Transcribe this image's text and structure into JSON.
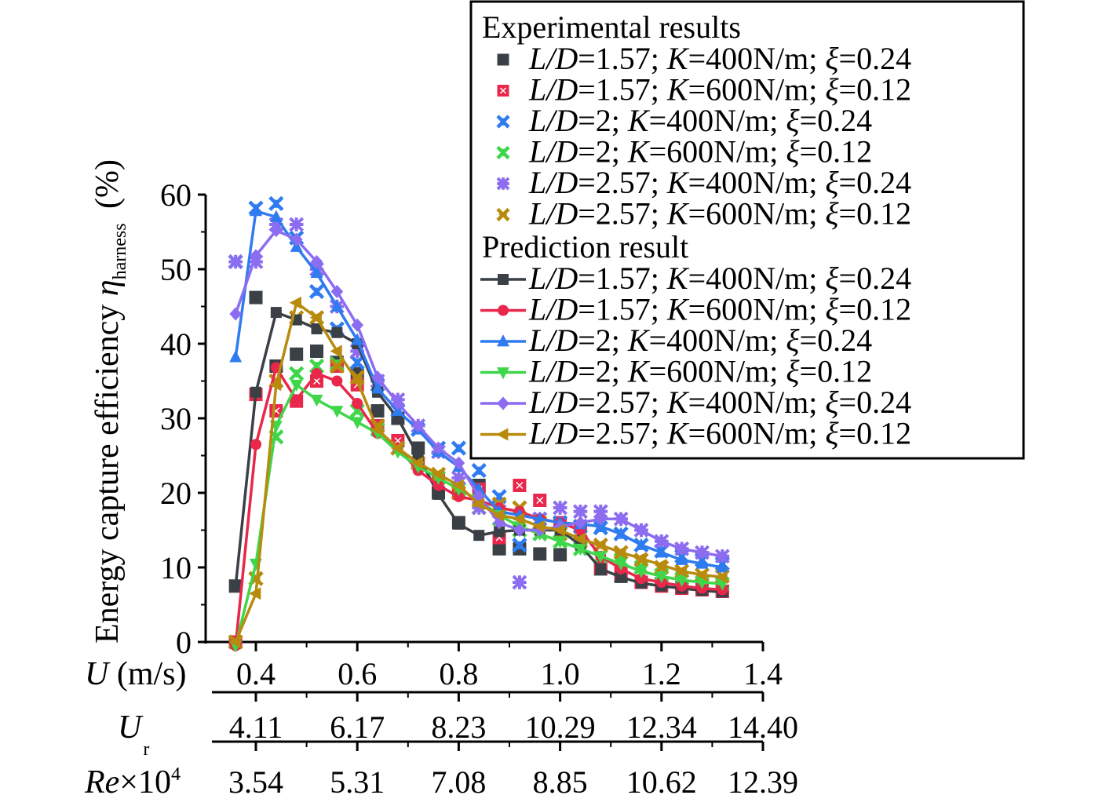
{
  "chart_data": {
    "type": "line",
    "title": "",
    "ylabel": "Energy capture efficiency η_harness (%)",
    "ylabel_parts": {
      "main": "Energy capture efficiency ",
      "symbol": "η",
      "subscript": "harness",
      "unit": " (%)"
    },
    "ylim": [
      0,
      60
    ],
    "yticks": [
      "0",
      "10",
      "20",
      "30",
      "40",
      "50",
      "60"
    ],
    "ytick_values": [
      0,
      10,
      20,
      30,
      40,
      50,
      60
    ],
    "xlim": [
      0.34,
      1.4
    ],
    "x_axes": [
      {
        "label_italic": "U",
        "label_rest": " (m/s)",
        "ticks": [
          "0.4",
          "0.6",
          "0.8",
          "1.0",
          "1.2",
          "1.4"
        ]
      },
      {
        "label_italic": "U",
        "label_sub": "r",
        "ticks": [
          "4.11",
          "6.17",
          "8.23",
          "10.29",
          "12.34",
          "14.40"
        ]
      },
      {
        "label_italic": "Re",
        "label_rest": "×10",
        "label_sup": "4",
        "ticks": [
          "3.54",
          "5.31",
          "7.08",
          "8.85",
          "10.62",
          "12.39"
        ]
      }
    ],
    "xtick_values": [
      0.4,
      0.6,
      0.8,
      1.0,
      1.2,
      1.4
    ],
    "x": [
      0.36,
      0.4,
      0.44,
      0.48,
      0.52,
      0.56,
      0.6,
      0.64,
      0.68,
      0.72,
      0.76,
      0.8,
      0.84,
      0.88,
      0.92,
      0.96,
      1.0,
      1.04,
      1.08,
      1.12,
      1.16,
      1.2,
      1.24,
      1.28,
      1.32
    ],
    "legend": {
      "placement": "top-right",
      "experimental_heading": "Experimental results",
      "prediction_heading": "Prediction result"
    },
    "experimental_series": [
      {
        "name": "L/D=1.57; K=400N/m; ξ=0.24",
        "ld": "1.57",
        "k": "400N/m",
        "xi": "0.24",
        "color": "#3a4046",
        "marker": "square",
        "values": [
          7.5,
          46.2,
          37.0,
          38.6,
          39.0,
          37.5,
          36.0,
          31.0,
          30.0,
          26.0,
          20.0,
          16.0,
          21.0,
          12.5,
          12.5,
          11.8,
          11.7,
          13.5,
          9.8,
          8.8,
          8.0,
          7.8,
          7.3,
          7.0,
          6.8
        ]
      },
      {
        "name": "L/D=1.57; K=600N/m; ξ=0.12",
        "ld": "1.57",
        "k": "600N/m",
        "xi": "0.12",
        "color": "#e8274a",
        "marker": "square-x",
        "values": [
          0.0,
          33.2,
          31.0,
          32.3,
          35.0,
          37.0,
          34.5,
          29.0,
          27.0,
          24.0,
          22.0,
          20.0,
          20.5,
          14.0,
          21.0,
          19.0,
          16.0,
          15.5,
          10.0,
          9.2,
          8.0,
          7.5,
          7.2,
          7.0,
          6.8
        ]
      },
      {
        "name": "L/D=2; K=400N/m; ξ=0.24",
        "ld": "2",
        "k": "400N/m",
        "xi": "0.24",
        "color": "#2f7bf0",
        "marker": "x-tri",
        "values": [
          51.0,
          58.2,
          58.8,
          54.2,
          47.0,
          42.0,
          37.5,
          34.5,
          31.0,
          28.5,
          26.0,
          26.0,
          23.0,
          19.5,
          13.0,
          16.5,
          16.0,
          15.5,
          15.3,
          14.5,
          13.0,
          12.2,
          11.5,
          11.0,
          10.5
        ]
      },
      {
        "name": "L/D=2; K=600N/m; ξ=0.12",
        "ld": "2",
        "k": "600N/m",
        "xi": "0.12",
        "color": "#3fd64a",
        "marker": "x-tri-down",
        "values": [
          0.0,
          8.5,
          27.5,
          36.0,
          37.0,
          37.3,
          31.0,
          28.5,
          26.0,
          24.0,
          22.0,
          20.5,
          18.0,
          16.5,
          15.0,
          14.5,
          13.5,
          12.5,
          11.5,
          11.0,
          10.0,
          9.0,
          8.5,
          8.0,
          7.8
        ]
      },
      {
        "name": "L/D=2.57; K=400N/m; ξ=0.24",
        "ld": "2.57",
        "k": "400N/m",
        "xi": "0.24",
        "color": "#8c6cf0",
        "marker": "asterisk",
        "values": [
          51.0,
          51.0,
          56.0,
          56.0,
          50.0,
          45.0,
          39.0,
          35.0,
          32.5,
          29.0,
          25.5,
          22.0,
          18.0,
          17.5,
          8.0,
          16.5,
          18.0,
          17.5,
          17.5,
          16.5,
          15.0,
          13.5,
          12.5,
          12.0,
          11.5
        ]
      },
      {
        "name": "L/D=2.57; K=600N/m; ξ=0.12",
        "ld": "2.57",
        "k": "600N/m",
        "xi": "0.12",
        "color": "#b88b0e",
        "marker": "x-left",
        "values": [
          0.0,
          8.5,
          35.0,
          43.5,
          43.5,
          37.0,
          35.5,
          29.0,
          26.0,
          24.0,
          22.5,
          20.0,
          19.0,
          18.5,
          18.0,
          16.0,
          14.5,
          13.5,
          13.0,
          12.0,
          11.0,
          10.0,
          9.5,
          9.0,
          8.8
        ]
      }
    ],
    "prediction_series": [
      {
        "name": "L/D=1.57; K=400N/m; ξ=0.24",
        "ld": "1.57",
        "k": "400N/m",
        "xi": "0.24",
        "color": "#3a4046",
        "marker": "square",
        "values": [
          7.5,
          33.5,
          44.2,
          43.2,
          42.0,
          41.5,
          40.0,
          33.5,
          30.0,
          25.0,
          19.8,
          15.8,
          14.3,
          14.8,
          15.0,
          15.0,
          15.0,
          13.0,
          9.8,
          8.7,
          7.9,
          7.5,
          7.2,
          6.9,
          6.7
        ]
      },
      {
        "name": "L/D=1.57; K=600N/m; ξ=0.12",
        "ld": "1.57",
        "k": "600N/m",
        "xi": "0.12",
        "color": "#e8274a",
        "marker": "circle",
        "values": [
          -0.5,
          26.5,
          36.8,
          32.5,
          36.0,
          35.0,
          32.0,
          28.0,
          26.0,
          23.0,
          21.0,
          19.5,
          19.0,
          18.0,
          17.5,
          16.5,
          16.0,
          15.0,
          11.5,
          9.8,
          8.5,
          8.0,
          7.5,
          7.2,
          7.0
        ]
      },
      {
        "name": "L/D=2; K=400N/m; ξ=0.24",
        "ld": "2",
        "k": "400N/m",
        "xi": "0.24",
        "color": "#2f7bf0",
        "marker": "triangle-up",
        "values": [
          38.2,
          57.8,
          57.0,
          53.0,
          49.5,
          45.0,
          40.5,
          34.0,
          31.0,
          28.5,
          25.5,
          23.5,
          20.5,
          17.5,
          17.0,
          16.5,
          16.0,
          15.8,
          15.5,
          14.5,
          13.0,
          12.0,
          11.0,
          10.5,
          10.0
        ]
      },
      {
        "name": "L/D=2; K=600N/m; ξ=0.12",
        "ld": "2",
        "k": "600N/m",
        "xi": "0.12",
        "color": "#3fd64a",
        "marker": "triangle-down",
        "values": [
          -0.5,
          10.5,
          29.0,
          34.5,
          32.5,
          31.0,
          29.5,
          28.0,
          25.5,
          23.5,
          22.0,
          20.5,
          19.0,
          17.0,
          15.5,
          14.5,
          13.5,
          12.5,
          11.5,
          10.5,
          9.5,
          8.8,
          8.3,
          8.0,
          7.8
        ]
      },
      {
        "name": "L/D=2.57; K=400N/m; ξ=0.24",
        "ld": "2.57",
        "k": "400N/m",
        "xi": "0.24",
        "color": "#8c6cf0",
        "marker": "diamond",
        "values": [
          44.0,
          51.8,
          55.2,
          54.0,
          51.0,
          47.0,
          42.5,
          35.5,
          32.0,
          29.0,
          26.0,
          24.0,
          19.5,
          16.0,
          15.0,
          15.0,
          15.5,
          16.0,
          16.5,
          16.5,
          15.0,
          13.5,
          12.5,
          12.0,
          11.5
        ]
      },
      {
        "name": "L/D=2.57; K=600N/m; ξ=0.12",
        "ld": "2.57",
        "k": "600N/m",
        "xi": "0.12",
        "color": "#b88b0e",
        "marker": "triangle-left",
        "values": [
          0.0,
          6.5,
          34.5,
          45.5,
          43.5,
          39.0,
          35.0,
          28.5,
          26.0,
          24.0,
          22.5,
          21.0,
          18.5,
          17.0,
          16.5,
          15.5,
          15.0,
          13.8,
          13.0,
          12.0,
          11.2,
          10.3,
          9.5,
          9.0,
          8.7
        ]
      }
    ]
  }
}
